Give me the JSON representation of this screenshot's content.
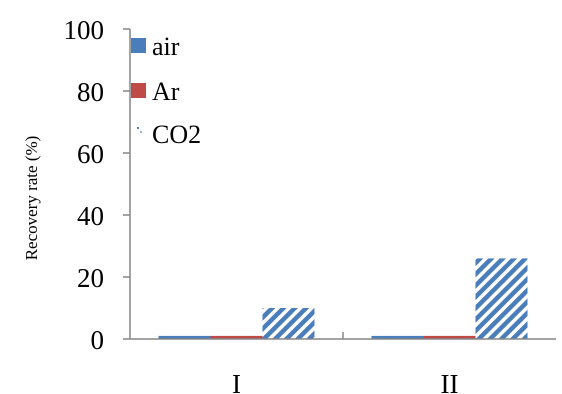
{
  "chart_data": {
    "type": "bar",
    "title": "",
    "xlabel": "",
    "ylabel": "Recovery rate (%)",
    "ylim": [
      0,
      100
    ],
    "yticks": [
      0,
      20,
      40,
      60,
      80,
      100
    ],
    "grid": false,
    "legend_position": "top-left",
    "categories": [
      "I",
      "II"
    ],
    "series": [
      {
        "name": "air",
        "values": [
          1,
          1
        ],
        "color": "#4a7ebb",
        "pattern": "solid"
      },
      {
        "name": "Ar",
        "values": [
          1,
          1
        ],
        "color": "#be4b48",
        "pattern": "solid"
      },
      {
        "name": "CO2",
        "values": [
          10,
          26
        ],
        "color": "#4a7ebb",
        "pattern": "diagonal-hatch"
      }
    ]
  }
}
